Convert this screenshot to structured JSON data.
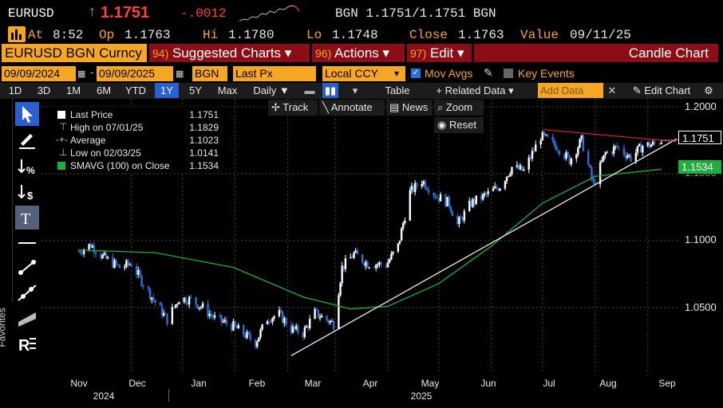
{
  "header": {
    "ticker": "EURUSD",
    "arrow": "↑",
    "price": "1.1751",
    "change": "-.0012",
    "bidask": "BGN 1.1751/1.1751 BGN"
  },
  "quote": {
    "at_label": "At",
    "at_val": "8:52",
    "op_label": "Op",
    "op_val": "1.1763",
    "hi_label": "Hi",
    "hi_val": "1.1780",
    "lo_label": "Lo",
    "lo_val": "1.1748",
    "close_label": "Close",
    "close_val": "1.1763",
    "value_label": "Value",
    "value_val": "09/11/25"
  },
  "toolbar": {
    "security": "EURUSD BGN Curncy",
    "suggested_num": "94)",
    "suggested": "Suggested Charts ▾",
    "actions_num": "96)",
    "actions": "Actions ▾",
    "edit_num": "97)",
    "edit": "Edit ▾",
    "chart_type": "Candle Chart"
  },
  "controls": {
    "start_date": "09/09/2024",
    "end_date": "09/09/2025",
    "source": "BGN",
    "field": "Last Px",
    "currency": "Local CCY",
    "mov_avgs": "Mov Avgs",
    "key_events": "Key Events"
  },
  "periods": [
    "1D",
    "3D",
    "1M",
    "6M",
    "YTD",
    "1Y",
    "5Y",
    "Max"
  ],
  "selected_period": "1Y",
  "freq": "Daily ▼",
  "table_label": "Table",
  "related": "+ Related Data ▾",
  "add_data": "Add Data",
  "edit_chart": "Edit Chart",
  "overlay": {
    "track": "Track",
    "annotate": "Annotate",
    "news": "News",
    "zoom": "Zoom",
    "reset": "Reset"
  },
  "favorites": "Favorites",
  "legend": {
    "last_price_label": "Last Price",
    "last_price_val": "1.1751",
    "high_label": "High on 07/01/25",
    "high_val": "1.1829",
    "avg_label": "Average",
    "avg_val": "1.1023",
    "low_label": "Low on 02/03/25",
    "low_val": "1.0141",
    "sma_label": "SMAVG (100)  on Close",
    "sma_val": "1.1534"
  },
  "yaxis": {
    "labels": [
      "1.2000",
      "1.1500",
      "1.1000",
      "1.0500"
    ],
    "last_tag": "1.1751",
    "sma_tag": "1.1534"
  },
  "xaxis": {
    "months": [
      "Nov",
      "Dec",
      "Jan",
      "Feb",
      "Mar",
      "Apr",
      "May",
      "Jun",
      "Jul",
      "Aug",
      "Sep"
    ],
    "years": [
      "2024",
      "2025"
    ]
  },
  "colors": {
    "up": "#ffffff",
    "down": "#2f6fd6",
    "sma": "#1fae3c",
    "trend_up": "#ffffff",
    "trend_down": "#e02424",
    "orange": "#f5a623",
    "red_bar": "#8b0e16"
  },
  "chart_data": {
    "type": "candlestick",
    "title": "",
    "x_start": "09/09/2024",
    "x_end": "09/09/2025",
    "ylim": [
      1.0,
      1.2
    ],
    "price_path": [
      [
        "2024-10-01",
        1.092
      ],
      [
        "2024-10-08",
        1.097
      ],
      [
        "2024-10-15",
        1.088
      ],
      [
        "2024-10-25",
        1.08
      ],
      [
        "2024-11-01",
        1.083
      ],
      [
        "2024-11-06",
        1.072
      ],
      [
        "2024-11-15",
        1.054
      ],
      [
        "2024-11-22",
        1.041
      ],
      [
        "2024-11-29",
        1.057
      ],
      [
        "2024-12-06",
        1.056
      ],
      [
        "2024-12-13",
        1.05
      ],
      [
        "2024-12-20",
        1.042
      ],
      [
        "2024-12-31",
        1.036
      ],
      [
        "2025-01-13",
        1.024
      ],
      [
        "2025-01-20",
        1.042
      ],
      [
        "2025-01-27",
        1.045
      ],
      [
        "2025-02-03",
        1.034
      ],
      [
        "2025-02-10",
        1.031
      ],
      [
        "2025-02-17",
        1.046
      ],
      [
        "2025-02-28",
        1.038
      ],
      [
        "2025-03-05",
        1.08
      ],
      [
        "2025-03-12",
        1.09
      ],
      [
        "2025-03-20",
        1.083
      ],
      [
        "2025-03-31",
        1.082
      ],
      [
        "2025-04-07",
        1.096
      ],
      [
        "2025-04-14",
        1.136
      ],
      [
        "2025-04-21",
        1.145
      ],
      [
        "2025-04-30",
        1.133
      ],
      [
        "2025-05-07",
        1.128
      ],
      [
        "2025-05-12",
        1.112
      ],
      [
        "2025-05-20",
        1.128
      ],
      [
        "2025-05-30",
        1.135
      ],
      [
        "2025-06-06",
        1.141
      ],
      [
        "2025-06-13",
        1.155
      ],
      [
        "2025-06-20",
        1.152
      ],
      [
        "2025-06-30",
        1.178
      ],
      [
        "2025-07-03",
        1.176
      ],
      [
        "2025-07-10",
        1.17
      ],
      [
        "2025-07-17",
        1.16
      ],
      [
        "2025-07-24",
        1.175
      ],
      [
        "2025-07-31",
        1.142
      ],
      [
        "2025-08-07",
        1.165
      ],
      [
        "2025-08-14",
        1.17
      ],
      [
        "2025-08-22",
        1.162
      ],
      [
        "2025-08-29",
        1.171
      ],
      [
        "2025-09-05",
        1.172
      ],
      [
        "2025-09-09",
        1.1751
      ]
    ],
    "sma100": [
      [
        "2024-10-01",
        1.093
      ],
      [
        "2024-11-15",
        1.091
      ],
      [
        "2024-12-31",
        1.08
      ],
      [
        "2025-02-10",
        1.058
      ],
      [
        "2025-03-10",
        1.049
      ],
      [
        "2025-04-01",
        1.051
      ],
      [
        "2025-05-01",
        1.068
      ],
      [
        "2025-06-01",
        1.096
      ],
      [
        "2025-07-01",
        1.128
      ],
      [
        "2025-08-01",
        1.148
      ],
      [
        "2025-09-09",
        1.1534
      ]
    ],
    "trendlines": [
      {
        "color": "white",
        "from": [
          "2025-02-03",
          1.0141
        ],
        "to": [
          "2025-09-18",
          1.176
        ]
      },
      {
        "color": "red",
        "from": [
          "2025-07-01",
          1.183
        ],
        "to": [
          "2025-09-18",
          1.174
        ]
      }
    ],
    "last_price": 1.1751,
    "sma_last": 1.1534
  }
}
